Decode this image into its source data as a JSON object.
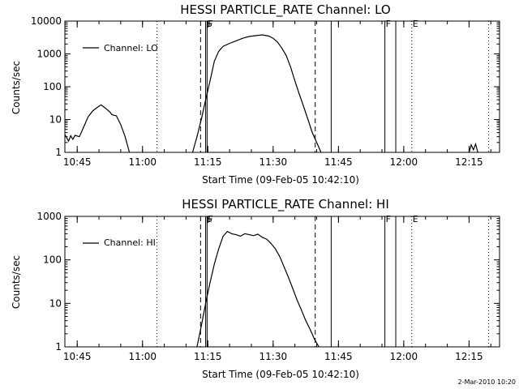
{
  "footer": {
    "timestamp": "2-Mar-2010 10:20"
  },
  "chart_data": [
    {
      "type": "line",
      "title": "HESSI PARTICLE_RATE Channel: LO",
      "xlabel": "Start Time (09-Feb-05 10:42:10)",
      "ylabel": "Counts/sec",
      "y_scale": "log",
      "xlim": [
        "10:42:10",
        "12:22:00"
      ],
      "ylim": [
        1,
        10000
      ],
      "x_ticks": [
        "10:45",
        "11:00",
        "11:15",
        "11:30",
        "11:45",
        "12:00",
        "12:15"
      ],
      "y_ticks": [
        "1",
        "10",
        "100",
        "1000",
        "10000"
      ],
      "legend": {
        "label": "Channel: LO",
        "position": "top-left"
      },
      "series": [
        {
          "name": "Channel: LO",
          "segments": [
            [
              [
                "10:42:10",
                3.5
              ],
              [
                "10:43:00",
                2.2
              ],
              [
                "10:43:30",
                3.2
              ],
              [
                "10:44:00",
                2.5
              ],
              [
                "10:44:30",
                3.3
              ],
              [
                "10:45:30",
                3.0
              ],
              [
                "10:46:30",
                6.0
              ],
              [
                "10:47:30",
                12
              ],
              [
                "10:48:30",
                18
              ],
              [
                "10:49:30",
                23
              ],
              [
                "10:50:30",
                28
              ],
              [
                "10:51:30",
                22
              ],
              [
                "10:52:30",
                17
              ],
              [
                "10:53:00",
                14
              ],
              [
                "10:54:00",
                13
              ],
              [
                "10:55:00",
                7
              ],
              [
                "10:56:00",
                3
              ],
              [
                "10:57:00",
                1
              ]
            ],
            [
              [
                "11:11:30",
                1
              ],
              [
                "11:12:30",
                3
              ],
              [
                "11:13:30",
                10
              ],
              [
                "11:14:30",
                40
              ],
              [
                "11:15:30",
                150
              ],
              [
                "11:16:30",
                600
              ],
              [
                "11:17:30",
                1200
              ],
              [
                "11:18:30",
                1700
              ],
              [
                "11:20:00",
                2100
              ],
              [
                "11:21:30",
                2500
              ],
              [
                "11:23:00",
                3000
              ],
              [
                "11:24:30",
                3400
              ],
              [
                "11:26:00",
                3600
              ],
              [
                "11:27:30",
                3800
              ],
              [
                "11:29:00",
                3500
              ],
              [
                "11:30:00",
                3000
              ],
              [
                "11:31:00",
                2300
              ],
              [
                "11:32:00",
                1500
              ],
              [
                "11:33:00",
                900
              ],
              [
                "11:34:00",
                400
              ],
              [
                "11:35:00",
                150
              ],
              [
                "11:36:00",
                60
              ],
              [
                "11:37:00",
                25
              ],
              [
                "11:38:00",
                10
              ],
              [
                "11:39:00",
                4
              ],
              [
                "11:40:00",
                2
              ],
              [
                "11:41:00",
                1
              ]
            ],
            [
              [
                "12:15:00",
                1
              ],
              [
                "12:15:30",
                1.7
              ],
              [
                "12:16:00",
                1.2
              ],
              [
                "12:16:30",
                1.8
              ],
              [
                "12:17:00",
                1
              ]
            ]
          ]
        }
      ],
      "vertical_markers": [
        {
          "time": "11:03:20",
          "style": "dotted"
        },
        {
          "time": "11:13:20",
          "style": "dashed"
        },
        {
          "time": "11:14:30",
          "style": "solid",
          "label": "S"
        },
        {
          "time": "11:14:50",
          "style": "solid",
          "label": "F"
        },
        {
          "time": "11:39:40",
          "style": "dashed"
        },
        {
          "time": "11:43:20",
          "style": "solid"
        },
        {
          "time": "11:55:40",
          "style": "solid",
          "label": "F"
        },
        {
          "time": "11:58:10",
          "style": "solid"
        },
        {
          "time": "12:01:50",
          "style": "dotted",
          "label": "E"
        },
        {
          "time": "12:19:30",
          "style": "dotted"
        }
      ]
    },
    {
      "type": "line",
      "title": "HESSI PARTICLE_RATE Channel: HI",
      "xlabel": "Start Time (09-Feb-05 10:42:10)",
      "ylabel": "Counts/sec",
      "y_scale": "log",
      "xlim": [
        "10:42:10",
        "12:22:00"
      ],
      "ylim": [
        1,
        1000
      ],
      "x_ticks": [
        "10:45",
        "11:00",
        "11:15",
        "11:30",
        "11:45",
        "12:00",
        "12:15"
      ],
      "y_ticks": [
        "1",
        "10",
        "100",
        "1000"
      ],
      "legend": {
        "label": "Channel: HI",
        "position": "top-left"
      },
      "series": [
        {
          "name": "Channel: HI",
          "segments": [
            [
              [
                "11:12:30",
                1
              ],
              [
                "11:13:30",
                3
              ],
              [
                "11:14:30",
                10
              ],
              [
                "11:15:30",
                30
              ],
              [
                "11:16:30",
                80
              ],
              [
                "11:17:30",
                180
              ],
              [
                "11:18:30",
                350
              ],
              [
                "11:19:30",
                450
              ],
              [
                "11:20:30",
                400
              ],
              [
                "11:21:30",
                380
              ],
              [
                "11:22:30",
                350
              ],
              [
                "11:23:30",
                400
              ],
              [
                "11:24:30",
                380
              ],
              [
                "11:25:30",
                360
              ],
              [
                "11:26:30",
                390
              ],
              [
                "11:27:30",
                330
              ],
              [
                "11:28:30",
                300
              ],
              [
                "11:29:30",
                240
              ],
              [
                "11:30:30",
                180
              ],
              [
                "11:31:30",
                120
              ],
              [
                "11:32:30",
                70
              ],
              [
                "11:33:30",
                40
              ],
              [
                "11:34:30",
                22
              ],
              [
                "11:35:30",
                12
              ],
              [
                "11:36:30",
                7
              ],
              [
                "11:37:30",
                4
              ],
              [
                "11:38:30",
                2.5
              ],
              [
                "11:39:30",
                1.5
              ],
              [
                "11:40:30",
                1
              ]
            ]
          ]
        }
      ],
      "vertical_markers": [
        {
          "time": "11:03:20",
          "style": "dotted"
        },
        {
          "time": "11:13:20",
          "style": "dashed"
        },
        {
          "time": "11:14:30",
          "style": "solid",
          "label": "S"
        },
        {
          "time": "11:14:50",
          "style": "solid",
          "label": "F"
        },
        {
          "time": "11:39:40",
          "style": "dashed"
        },
        {
          "time": "11:43:20",
          "style": "solid"
        },
        {
          "time": "11:55:40",
          "style": "solid",
          "label": "F"
        },
        {
          "time": "11:58:10",
          "style": "solid"
        },
        {
          "time": "12:01:50",
          "style": "dotted",
          "label": "E"
        },
        {
          "time": "12:19:30",
          "style": "dotted"
        }
      ]
    }
  ]
}
